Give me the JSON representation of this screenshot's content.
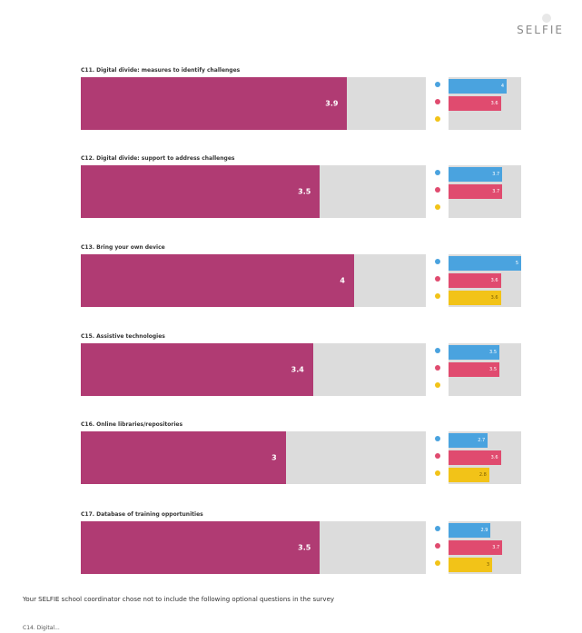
{
  "header": {
    "logo_text": "SELFIE"
  },
  "colors": {
    "main_bar": "#b03b73",
    "track": "#dcdcdc",
    "leaders": "#4aa3df",
    "teachers": "#e04b6f",
    "students": "#f2c318"
  },
  "chart_data": {
    "type": "bar",
    "categories": [
      "C11. Digital divide: measures to identify challenges",
      "C12. Digital divide: support to address challenges",
      "C13. Bring your own device",
      "C15. Assistive technologies",
      "C16. Online libraries/repositories",
      "C17. Database of training opportunities"
    ],
    "values": [
      3.9,
      3.5,
      4,
      3.4,
      3,
      3.5
    ],
    "value_labels": [
      "3.9",
      "3.5",
      "4",
      "3.4",
      "3",
      "3.5"
    ],
    "xlim": [
      0,
      5
    ],
    "breakdown": [
      {
        "leaders": 4.0,
        "teachers": 3.6,
        "students": null,
        "labels": [
          "4",
          "3.6",
          ""
        ]
      },
      {
        "leaders": 3.7,
        "teachers": 3.7,
        "students": null,
        "labels": [
          "3.7",
          "3.7",
          ""
        ]
      },
      {
        "leaders": 5.0,
        "teachers": 3.6,
        "students": 3.6,
        "labels": [
          "5",
          "3.6",
          "3.6"
        ]
      },
      {
        "leaders": 3.5,
        "teachers": 3.5,
        "students": null,
        "labels": [
          "3.5",
          "3.5",
          ""
        ]
      },
      {
        "leaders": 2.7,
        "teachers": 3.6,
        "students": 2.8,
        "labels": [
          "2.7",
          "3.6",
          "2.8"
        ]
      },
      {
        "leaders": 2.9,
        "teachers": 3.7,
        "students": 3.0,
        "labels": [
          "2.9",
          "3.7",
          "3"
        ]
      }
    ],
    "legend": "left of breakdown bars (icons)"
  },
  "footer": {
    "note": "Your SELFIE school coordinator chose not to include the following optional questions in the survey",
    "sub": "C14. Digital..."
  }
}
